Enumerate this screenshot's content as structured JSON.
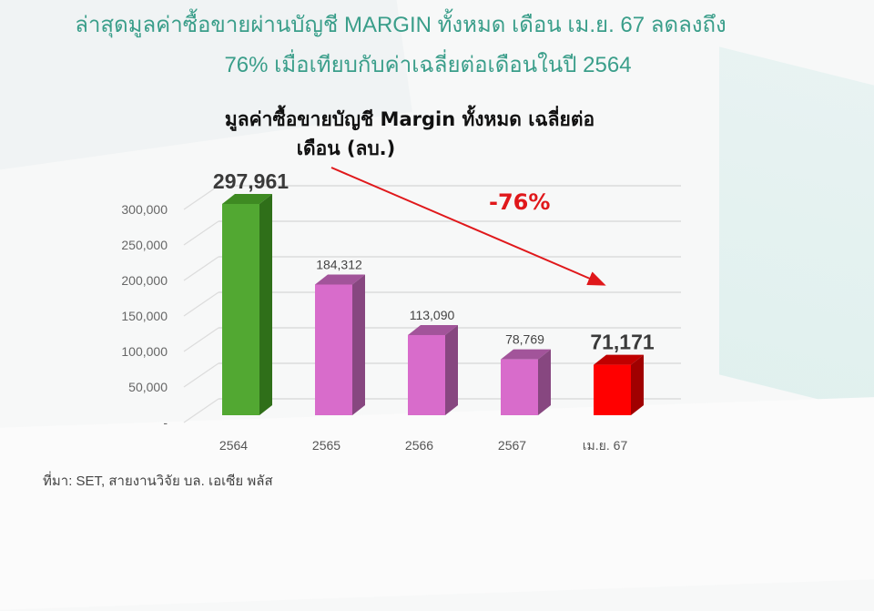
{
  "headline": {
    "line1": "ล่าสุดมูลค่าซื้อขายผ่านบัญชี MARGIN ทั้งหมด เดือน เม.ย. 67 ลดลงถึง",
    "line2": "76% เมื่อเทียบกับค่าเฉลี่ยต่อเดือนในปี 2564"
  },
  "chart_title": {
    "line1": "มูลค่าซื้อขายบัญชี Margin ทั้งหมด เฉลี่ยต่อ",
    "line2": "เดือน (ลบ.)"
  },
  "source": "ที่มา: SET, สายงานวิจัย บล. เอเซีย พลัส",
  "colors": {
    "headline": "#3a9e8a",
    "bar_2564": "#52a832",
    "bar_mid": "#d86ccb",
    "bar_latest": "#ff0000",
    "arrow": "#e0181b"
  },
  "chart_data": {
    "type": "bar",
    "title": "มูลค่าซื้อขายบัญชี Margin ทั้งหมด เฉลี่ยต่อเดือน (ลบ.)",
    "xlabel": "",
    "ylabel": "",
    "categories": [
      "2564",
      "2565",
      "2566",
      "2567",
      "เม.ย. 67"
    ],
    "values": [
      297961,
      184312,
      113090,
      78769,
      71171
    ],
    "value_labels": [
      "297,961",
      "184,312",
      "113,090",
      "78,769",
      "71,171"
    ],
    "bar_colors": [
      "#52a832",
      "#d86ccb",
      "#d86ccb",
      "#d86ccb",
      "#ff0000"
    ],
    "y_ticks": [
      "-",
      "50,000",
      "100,000",
      "150,000",
      "200,000",
      "250,000",
      "300,000"
    ],
    "ylim": [
      0,
      300000
    ],
    "grid": true,
    "style": "3d-column",
    "legend": "none",
    "annotation": {
      "text": "-76%",
      "type": "downward arrow from 2564 to เม.ย. 67"
    }
  }
}
